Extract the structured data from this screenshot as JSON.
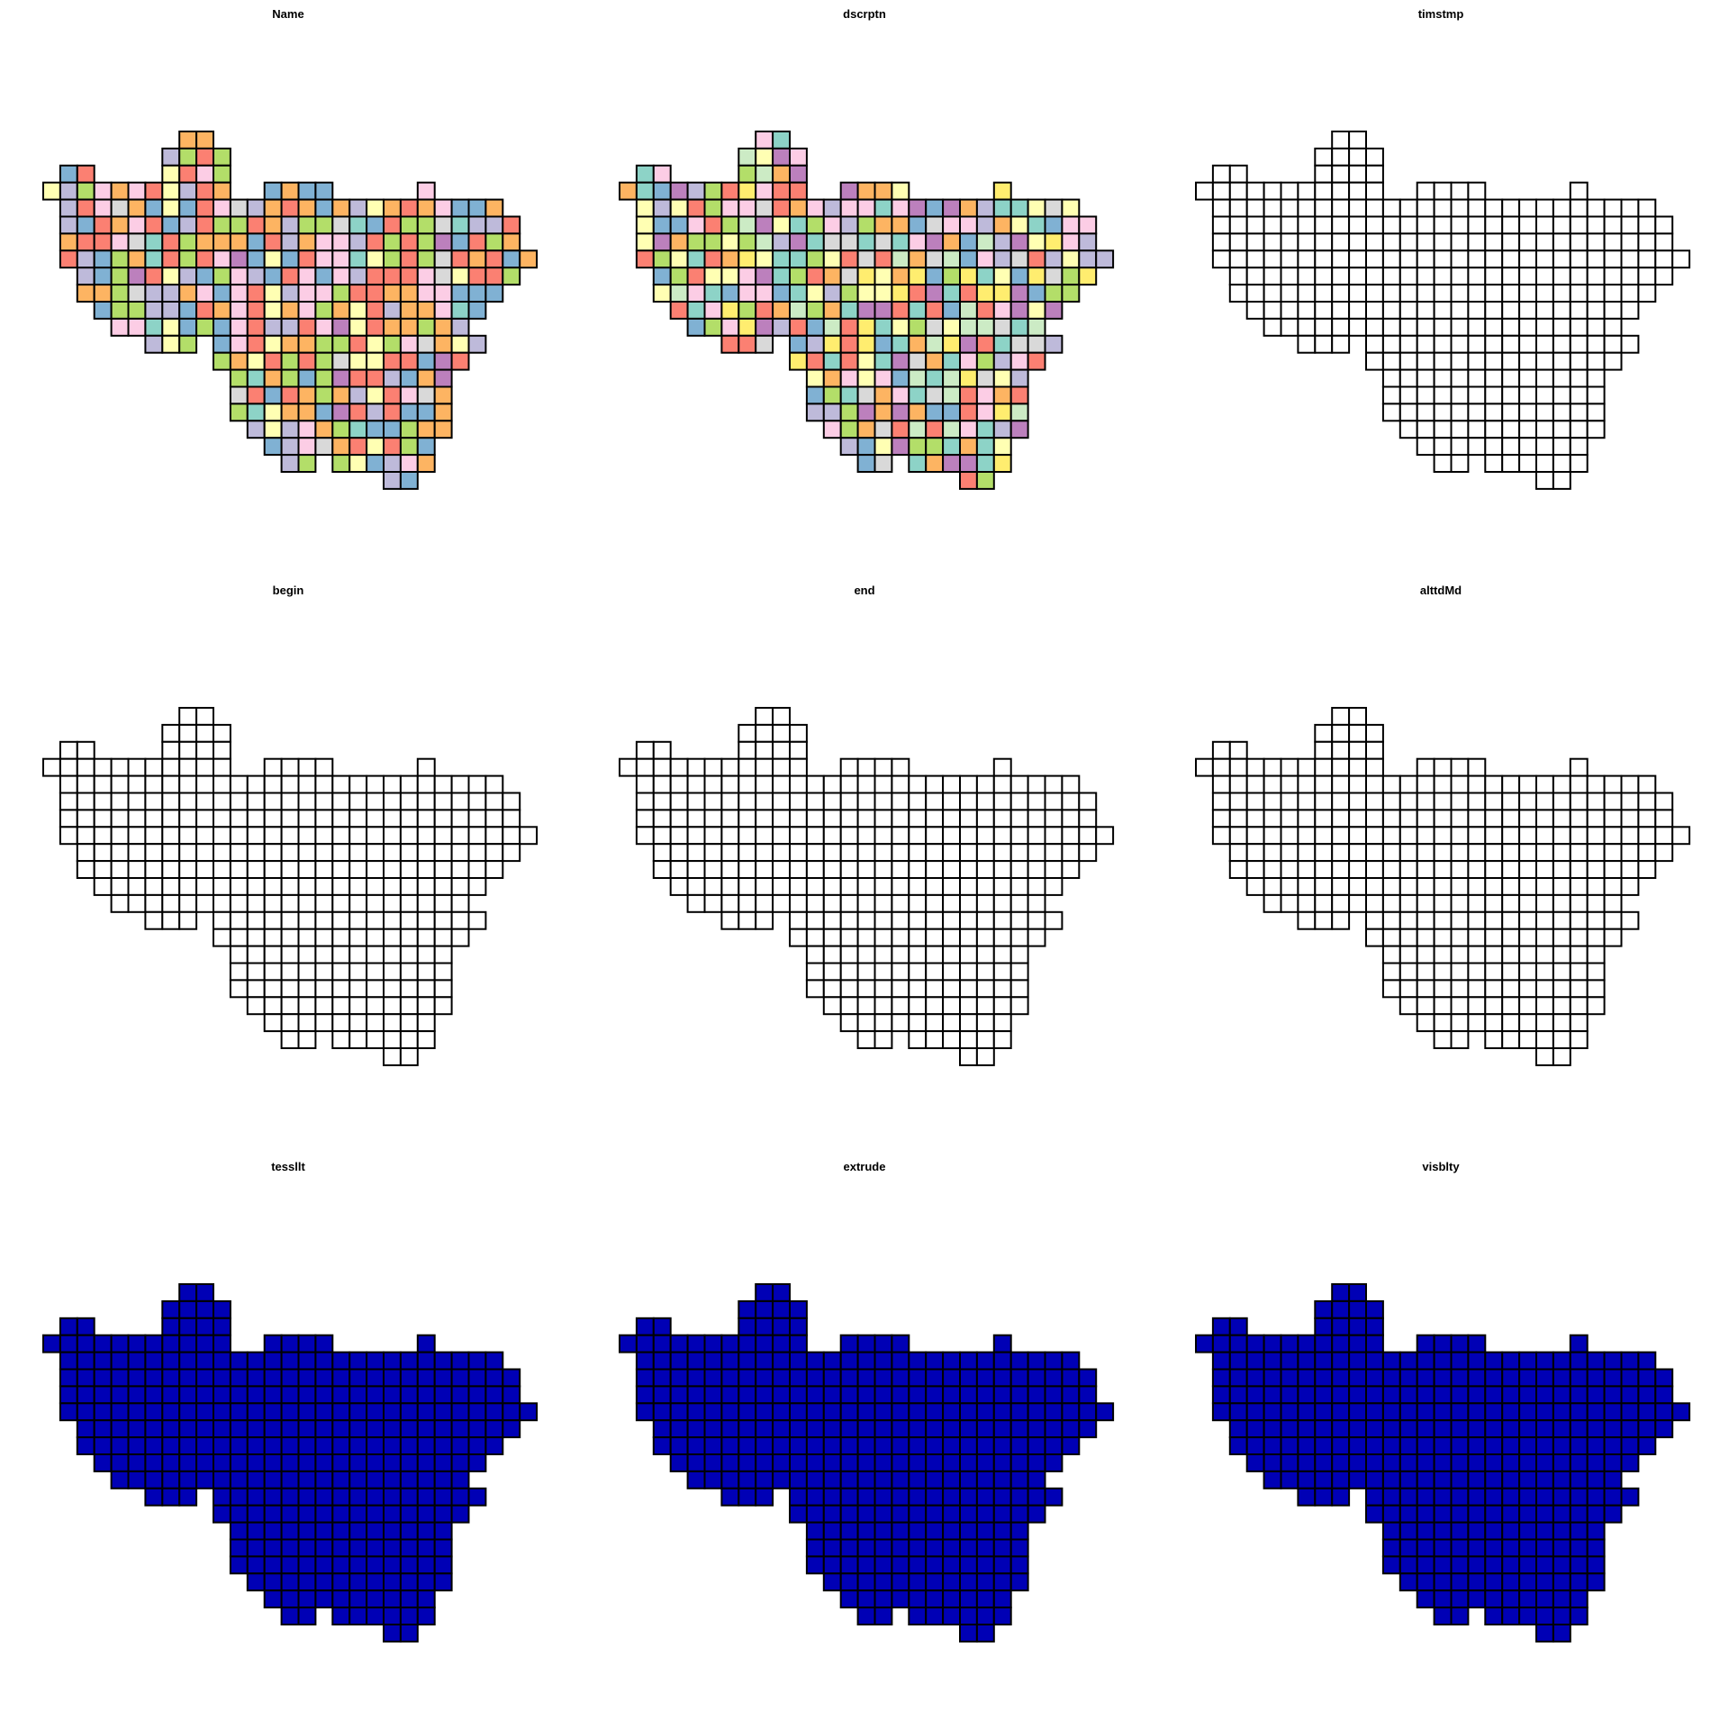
{
  "panels": [
    {
      "title": "Name",
      "fill_mode": "categorical"
    },
    {
      "title": "dscrptn",
      "fill_mode": "categorical"
    },
    {
      "title": "timstmp",
      "fill_mode": "empty"
    },
    {
      "title": "begin",
      "fill_mode": "empty"
    },
    {
      "title": "end",
      "fill_mode": "empty"
    },
    {
      "title": "alttdMd",
      "fill_mode": "empty"
    },
    {
      "title": "tessllt",
      "fill_mode": "solid"
    },
    {
      "title": "extrude",
      "fill_mode": "solid"
    },
    {
      "title": "visblty",
      "fill_mode": "solid"
    }
  ],
  "colors": {
    "empty_fill": "#ffffff",
    "solid_fill": "#0000b5",
    "border": "#000000",
    "categorical_palette": [
      "#8dd3c7",
      "#ffffb3",
      "#bebada",
      "#fb8072",
      "#80b1d3",
      "#fdb462",
      "#b3de69",
      "#fccde5",
      "#d9d9d9",
      "#bc80bd",
      "#ccebc5",
      "#ffed6f"
    ]
  }
}
